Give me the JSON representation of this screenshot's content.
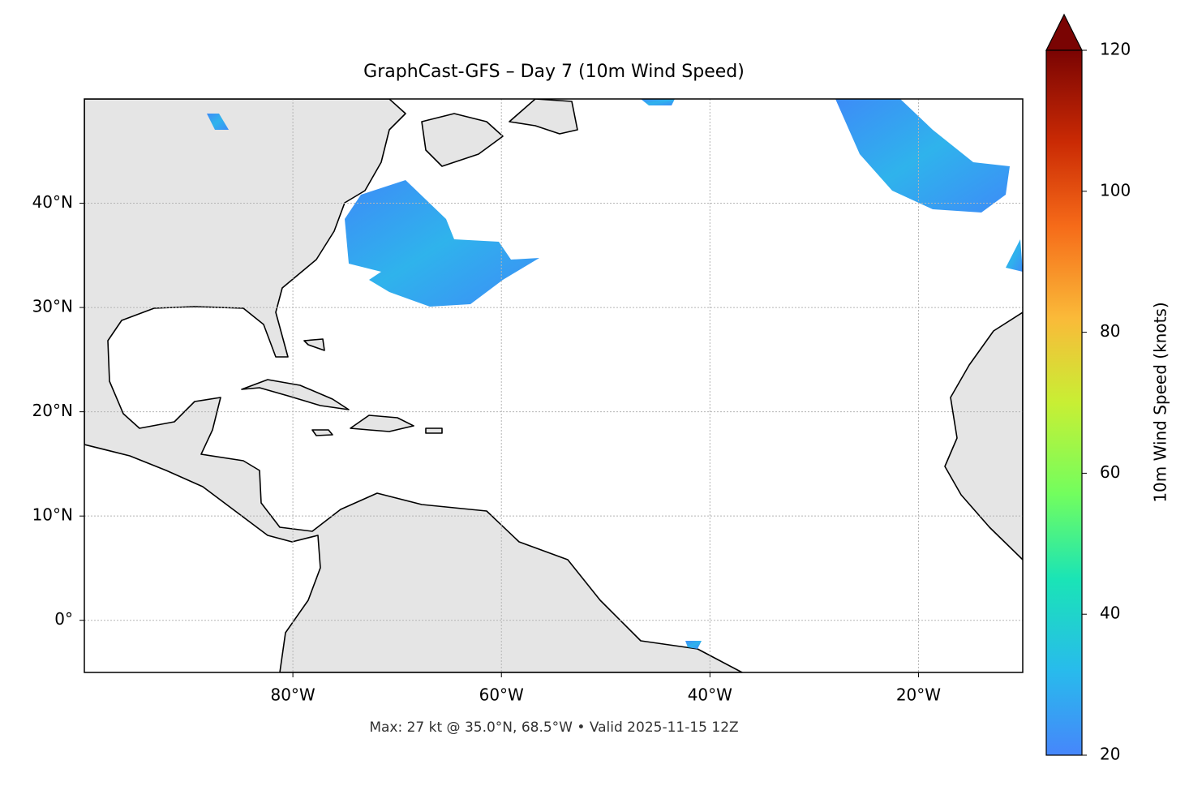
{
  "chart_data": {
    "type": "map",
    "title": "GraphCast-GFS – Day 7 (10m Wind Speed)",
    "footnote": "Max: 27 kt @ 35.0°N, 68.5°W • Valid 2025-11-15 12Z",
    "xlim": [
      -100,
      -10
    ],
    "ylim": [
      -5,
      50
    ],
    "xticks": [
      {
        "value": -80,
        "label": "80°W"
      },
      {
        "value": -60,
        "label": "60°W"
      },
      {
        "value": -40,
        "label": "40°W"
      },
      {
        "value": -20,
        "label": "20°W"
      }
    ],
    "yticks": [
      {
        "value": 0,
        "label": "0°"
      },
      {
        "value": 10,
        "label": "10°N"
      },
      {
        "value": 20,
        "label": "20°N"
      },
      {
        "value": 30,
        "label": "30°N"
      },
      {
        "value": 40,
        "label": "40°N"
      }
    ],
    "grid": true,
    "colorbar": {
      "label": "10m Wind Speed (knots)",
      "lim": [
        20,
        120
      ],
      "ticks": [
        20,
        40,
        60,
        80,
        100,
        120
      ]
    }
  }
}
